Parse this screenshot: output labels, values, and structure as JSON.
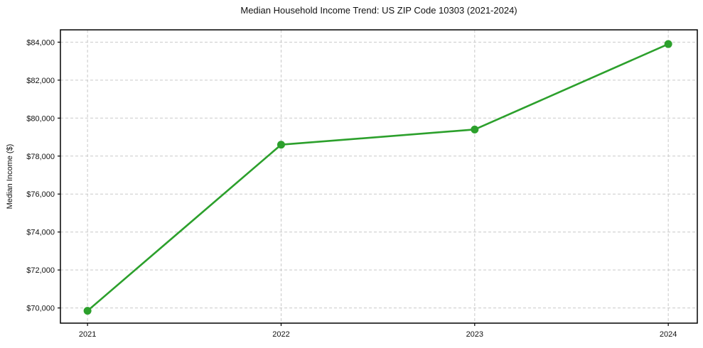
{
  "chart_data": {
    "type": "line",
    "title": "Median Household Income Trend: US ZIP Code 10303 (2021-2024)",
    "xlabel": "",
    "ylabel": "Median Income ($)",
    "x": [
      2021,
      2022,
      2023,
      2024
    ],
    "x_tick_labels": [
      "2021",
      "2022",
      "2023",
      "2024"
    ],
    "values": [
      69850,
      78600,
      79400,
      83900
    ],
    "series_name": "Median household income",
    "y_ticks": [
      70000,
      72000,
      74000,
      76000,
      78000,
      80000,
      82000,
      84000
    ],
    "y_tick_labels": [
      "$70,000",
      "$72,000",
      "$74,000",
      "$76,000",
      "$78,000",
      "$80,000",
      "$82,000",
      "$84,000"
    ],
    "xlim": [
      2020.86,
      2024.15
    ],
    "ylim": [
      69200,
      84650
    ],
    "grid": true,
    "grid_style": "dashed",
    "legend": "none",
    "line_color": "#2ca02c",
    "marker": "o",
    "grid_color": "#c9c9c9",
    "axis_color": "#000000",
    "text_color": "#111111"
  }
}
